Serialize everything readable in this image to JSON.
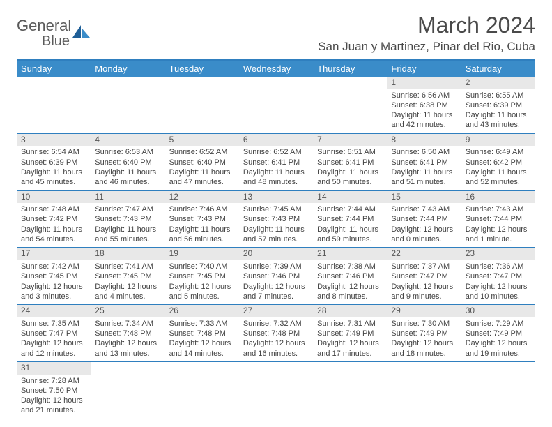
{
  "brand": {
    "name1": "General",
    "name2": "Blue"
  },
  "title": "March 2024",
  "location": "San Juan y Martinez, Pinar del Rio, Cuba",
  "colors": {
    "header_bg": "#3a8cc9",
    "rule": "#2f7fbf",
    "daynum_bg": "#e8e8e8",
    "text": "#444444",
    "title_text": "#4a4a4a"
  },
  "weekdays": [
    "Sunday",
    "Monday",
    "Tuesday",
    "Wednesday",
    "Thursday",
    "Friday",
    "Saturday"
  ],
  "weeks": [
    [
      {
        "n": "",
        "sr": "",
        "ss": "",
        "dl": ""
      },
      {
        "n": "",
        "sr": "",
        "ss": "",
        "dl": ""
      },
      {
        "n": "",
        "sr": "",
        "ss": "",
        "dl": ""
      },
      {
        "n": "",
        "sr": "",
        "ss": "",
        "dl": ""
      },
      {
        "n": "",
        "sr": "",
        "ss": "",
        "dl": ""
      },
      {
        "n": "1",
        "sr": "Sunrise: 6:56 AM",
        "ss": "Sunset: 6:38 PM",
        "dl": "Daylight: 11 hours and 42 minutes."
      },
      {
        "n": "2",
        "sr": "Sunrise: 6:55 AM",
        "ss": "Sunset: 6:39 PM",
        "dl": "Daylight: 11 hours and 43 minutes."
      }
    ],
    [
      {
        "n": "3",
        "sr": "Sunrise: 6:54 AM",
        "ss": "Sunset: 6:39 PM",
        "dl": "Daylight: 11 hours and 45 minutes."
      },
      {
        "n": "4",
        "sr": "Sunrise: 6:53 AM",
        "ss": "Sunset: 6:40 PM",
        "dl": "Daylight: 11 hours and 46 minutes."
      },
      {
        "n": "5",
        "sr": "Sunrise: 6:52 AM",
        "ss": "Sunset: 6:40 PM",
        "dl": "Daylight: 11 hours and 47 minutes."
      },
      {
        "n": "6",
        "sr": "Sunrise: 6:52 AM",
        "ss": "Sunset: 6:41 PM",
        "dl": "Daylight: 11 hours and 48 minutes."
      },
      {
        "n": "7",
        "sr": "Sunrise: 6:51 AM",
        "ss": "Sunset: 6:41 PM",
        "dl": "Daylight: 11 hours and 50 minutes."
      },
      {
        "n": "8",
        "sr": "Sunrise: 6:50 AM",
        "ss": "Sunset: 6:41 PM",
        "dl": "Daylight: 11 hours and 51 minutes."
      },
      {
        "n": "9",
        "sr": "Sunrise: 6:49 AM",
        "ss": "Sunset: 6:42 PM",
        "dl": "Daylight: 11 hours and 52 minutes."
      }
    ],
    [
      {
        "n": "10",
        "sr": "Sunrise: 7:48 AM",
        "ss": "Sunset: 7:42 PM",
        "dl": "Daylight: 11 hours and 54 minutes."
      },
      {
        "n": "11",
        "sr": "Sunrise: 7:47 AM",
        "ss": "Sunset: 7:43 PM",
        "dl": "Daylight: 11 hours and 55 minutes."
      },
      {
        "n": "12",
        "sr": "Sunrise: 7:46 AM",
        "ss": "Sunset: 7:43 PM",
        "dl": "Daylight: 11 hours and 56 minutes."
      },
      {
        "n": "13",
        "sr": "Sunrise: 7:45 AM",
        "ss": "Sunset: 7:43 PM",
        "dl": "Daylight: 11 hours and 57 minutes."
      },
      {
        "n": "14",
        "sr": "Sunrise: 7:44 AM",
        "ss": "Sunset: 7:44 PM",
        "dl": "Daylight: 11 hours and 59 minutes."
      },
      {
        "n": "15",
        "sr": "Sunrise: 7:43 AM",
        "ss": "Sunset: 7:44 PM",
        "dl": "Daylight: 12 hours and 0 minutes."
      },
      {
        "n": "16",
        "sr": "Sunrise: 7:43 AM",
        "ss": "Sunset: 7:44 PM",
        "dl": "Daylight: 12 hours and 1 minute."
      }
    ],
    [
      {
        "n": "17",
        "sr": "Sunrise: 7:42 AM",
        "ss": "Sunset: 7:45 PM",
        "dl": "Daylight: 12 hours and 3 minutes."
      },
      {
        "n": "18",
        "sr": "Sunrise: 7:41 AM",
        "ss": "Sunset: 7:45 PM",
        "dl": "Daylight: 12 hours and 4 minutes."
      },
      {
        "n": "19",
        "sr": "Sunrise: 7:40 AM",
        "ss": "Sunset: 7:45 PM",
        "dl": "Daylight: 12 hours and 5 minutes."
      },
      {
        "n": "20",
        "sr": "Sunrise: 7:39 AM",
        "ss": "Sunset: 7:46 PM",
        "dl": "Daylight: 12 hours and 7 minutes."
      },
      {
        "n": "21",
        "sr": "Sunrise: 7:38 AM",
        "ss": "Sunset: 7:46 PM",
        "dl": "Daylight: 12 hours and 8 minutes."
      },
      {
        "n": "22",
        "sr": "Sunrise: 7:37 AM",
        "ss": "Sunset: 7:47 PM",
        "dl": "Daylight: 12 hours and 9 minutes."
      },
      {
        "n": "23",
        "sr": "Sunrise: 7:36 AM",
        "ss": "Sunset: 7:47 PM",
        "dl": "Daylight: 12 hours and 10 minutes."
      }
    ],
    [
      {
        "n": "24",
        "sr": "Sunrise: 7:35 AM",
        "ss": "Sunset: 7:47 PM",
        "dl": "Daylight: 12 hours and 12 minutes."
      },
      {
        "n": "25",
        "sr": "Sunrise: 7:34 AM",
        "ss": "Sunset: 7:48 PM",
        "dl": "Daylight: 12 hours and 13 minutes."
      },
      {
        "n": "26",
        "sr": "Sunrise: 7:33 AM",
        "ss": "Sunset: 7:48 PM",
        "dl": "Daylight: 12 hours and 14 minutes."
      },
      {
        "n": "27",
        "sr": "Sunrise: 7:32 AM",
        "ss": "Sunset: 7:48 PM",
        "dl": "Daylight: 12 hours and 16 minutes."
      },
      {
        "n": "28",
        "sr": "Sunrise: 7:31 AM",
        "ss": "Sunset: 7:49 PM",
        "dl": "Daylight: 12 hours and 17 minutes."
      },
      {
        "n": "29",
        "sr": "Sunrise: 7:30 AM",
        "ss": "Sunset: 7:49 PM",
        "dl": "Daylight: 12 hours and 18 minutes."
      },
      {
        "n": "30",
        "sr": "Sunrise: 7:29 AM",
        "ss": "Sunset: 7:49 PM",
        "dl": "Daylight: 12 hours and 19 minutes."
      }
    ],
    [
      {
        "n": "31",
        "sr": "Sunrise: 7:28 AM",
        "ss": "Sunset: 7:50 PM",
        "dl": "Daylight: 12 hours and 21 minutes."
      },
      {
        "n": "",
        "sr": "",
        "ss": "",
        "dl": ""
      },
      {
        "n": "",
        "sr": "",
        "ss": "",
        "dl": ""
      },
      {
        "n": "",
        "sr": "",
        "ss": "",
        "dl": ""
      },
      {
        "n": "",
        "sr": "",
        "ss": "",
        "dl": ""
      },
      {
        "n": "",
        "sr": "",
        "ss": "",
        "dl": ""
      },
      {
        "n": "",
        "sr": "",
        "ss": "",
        "dl": ""
      }
    ]
  ]
}
